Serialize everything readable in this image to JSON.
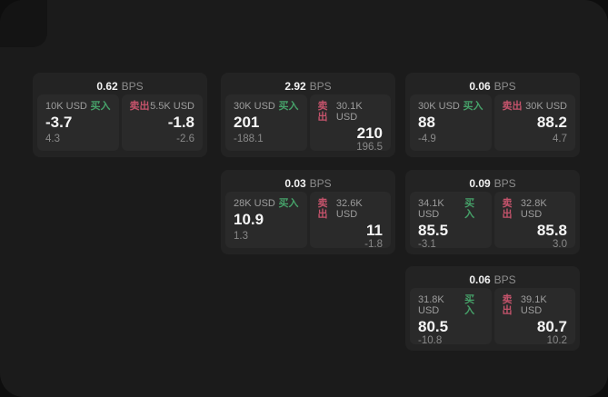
{
  "labels": {
    "bps": "BPS",
    "buy": "买入",
    "sell": "卖出"
  },
  "colors": {
    "page_bg": "#0e0e0e",
    "content_bg": "#1b1b1b",
    "card_bg": "#232323",
    "panel_bg": "#2a2a2a",
    "text_primary": "#f5f5f5",
    "text_muted": "#9d9d9d",
    "buy_green": "#46a169",
    "sell_red": "#c4536b"
  },
  "cards": [
    {
      "spread": "0.62",
      "buy": {
        "amount": "10K USD",
        "price": "-3.7",
        "delta": "4.3"
      },
      "sell": {
        "amount": "5.5K USD",
        "price": "-1.8",
        "delta": "-2.6"
      }
    },
    {
      "spread": "2.92",
      "buy": {
        "amount": "30K USD",
        "price": "201",
        "delta": "-188.1"
      },
      "sell": {
        "amount": "30.1K USD",
        "price": "210",
        "delta": "196.5"
      }
    },
    {
      "spread": "0.06",
      "buy": {
        "amount": "30K USD",
        "price": "88",
        "delta": "-4.9"
      },
      "sell": {
        "amount": "30K USD",
        "price": "88.2",
        "delta": "4.7"
      }
    },
    {
      "spread": "0.03",
      "buy": {
        "amount": "28K USD",
        "price": "10.9",
        "delta": "1.3"
      },
      "sell": {
        "amount": "32.6K USD",
        "price": "11",
        "delta": "-1.8"
      }
    },
    {
      "spread": "0.09",
      "buy": {
        "amount": "34.1K USD",
        "price": "85.5",
        "delta": "-3.1"
      },
      "sell": {
        "amount": "32.8K USD",
        "price": "85.8",
        "delta": "3.0"
      }
    },
    {
      "spread": "0.06",
      "buy": {
        "amount": "31.8K USD",
        "price": "80.5",
        "delta": "-10.8"
      },
      "sell": {
        "amount": "39.1K USD",
        "price": "80.7",
        "delta": "10.2"
      }
    }
  ]
}
